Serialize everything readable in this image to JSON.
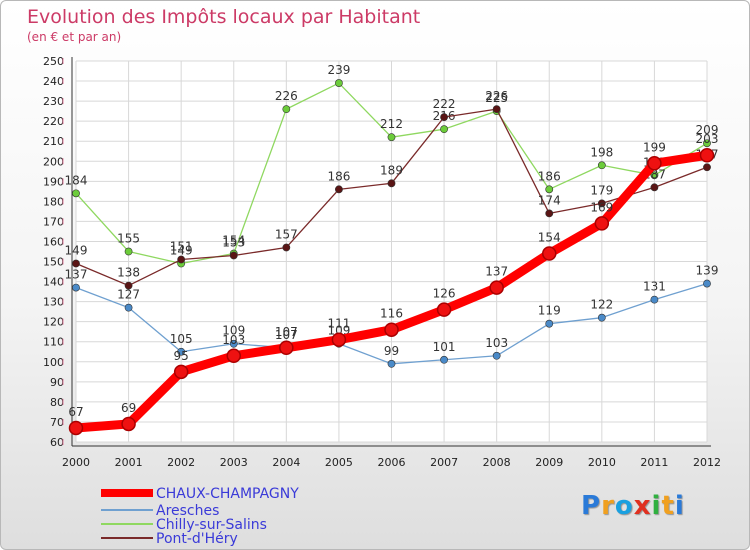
{
  "chart_data": {
    "type": "line",
    "title": "Evolution des Impôts locaux par Habitant",
    "subtitle": "(en € et par an)",
    "x": [
      "2000",
      "2001",
      "2002",
      "2003",
      "2004",
      "2005",
      "2006",
      "2007",
      "2008",
      "2009",
      "2010",
      "2011",
      "2012"
    ],
    "ylim": [
      60,
      250
    ],
    "yticks": [
      60,
      70,
      80,
      90,
      100,
      110,
      120,
      130,
      140,
      150,
      160,
      170,
      180,
      190,
      200,
      210,
      220,
      230,
      240,
      250
    ],
    "grid": true,
    "legend_position": "bottom-left",
    "series": [
      {
        "name": "CHAUX-CHAMPAGNY",
        "color": "#ff0000",
        "marker": "#ee1111",
        "values": [
          67,
          69,
          95,
          103,
          107,
          111,
          116,
          126,
          137,
          154,
          169,
          199,
          203
        ]
      },
      {
        "name": "Aresches",
        "color": "#6fa0d0",
        "marker": "#4a8ac8",
        "values": [
          137,
          127,
          105,
          109,
          107,
          109,
          99,
          101,
          103,
          119,
          122,
          131,
          139
        ]
      },
      {
        "name": "Chilly-sur-Salins",
        "color": "#8fd860",
        "marker": "#6ccc3a",
        "values": [
          184,
          155,
          149,
          154,
          226,
          239,
          212,
          216,
          225,
          186,
          198,
          193,
          209
        ]
      },
      {
        "name": "Pont-d'Héry",
        "color": "#7a2a2a",
        "marker": "#5a1515",
        "values": [
          149,
          138,
          151,
          153,
          157,
          186,
          189,
          222,
          226,
          174,
          179,
          187,
          197
        ]
      }
    ]
  },
  "logo": {
    "letters": [
      "P",
      "r",
      "o",
      "x",
      "i",
      "t",
      "i"
    ],
    "colors": [
      "#2a7ad8",
      "#f0a020",
      "#1aa0e0",
      "#e03020",
      "#30b040",
      "#f0a020",
      "#2a7ad8"
    ]
  }
}
